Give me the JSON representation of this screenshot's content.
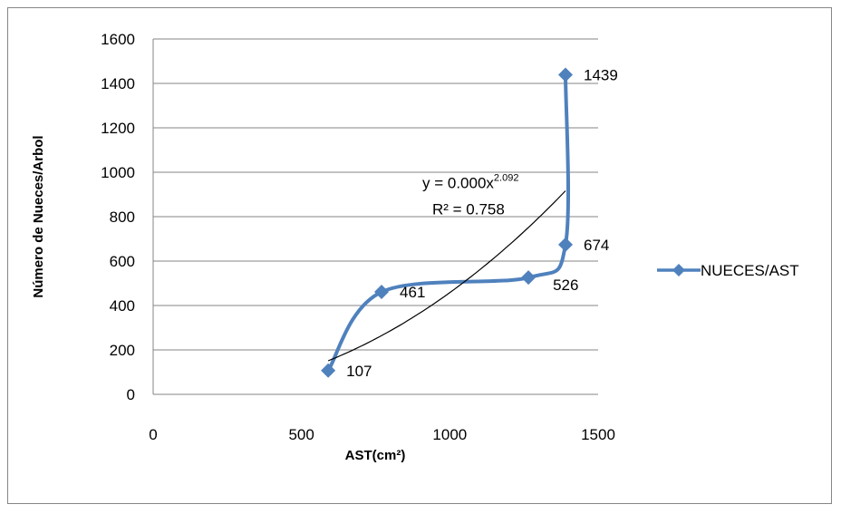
{
  "chart_data": {
    "type": "scatter",
    "title": "",
    "xlabel": "AST(cm²)",
    "ylabel": "Número de Nueces/Arbol",
    "xlim": [
      0,
      1500
    ],
    "ylim": [
      0,
      1600
    ],
    "x_ticks": [
      0,
      500,
      1000,
      1500
    ],
    "y_ticks": [
      0,
      200,
      400,
      600,
      800,
      1000,
      1200,
      1400,
      1600
    ],
    "grid": "horizontal",
    "legend_position": "right",
    "series": [
      {
        "name": "NUECES/AST",
        "color": "#4f81bd",
        "line": "smoothed",
        "marker": "diamond",
        "points": [
          {
            "x": 590,
            "y": 107,
            "label": "107"
          },
          {
            "x": 770,
            "y": 461,
            "label": "461"
          },
          {
            "x": 1265,
            "y": 526,
            "label": "526"
          },
          {
            "x": 1390,
            "y": 674,
            "label": "674"
          },
          {
            "x": 1390,
            "y": 1439,
            "label": "1439"
          }
        ]
      }
    ],
    "trendline": {
      "type": "power",
      "color": "#000000",
      "x_range": [
        590,
        1390
      ],
      "equation": "y = 0.000x",
      "exponent": "2.092",
      "r_squared": "R² = 0.758"
    }
  }
}
